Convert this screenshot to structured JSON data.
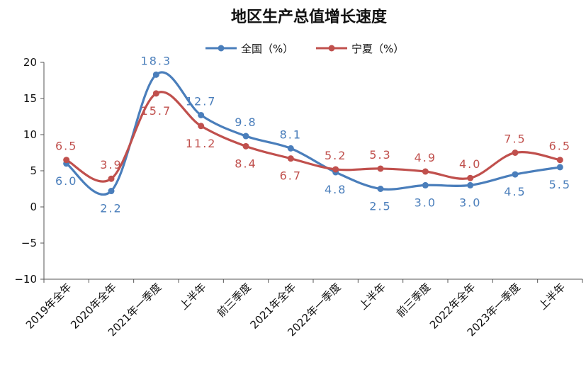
{
  "chart_data": {
    "type": "line",
    "title": "地区生产总值增长速度",
    "categories": [
      "2019年全年",
      "2020年全年",
      "2021年一季度",
      "上半年",
      "前三季度",
      "2021年全年",
      "2022年一季度",
      "上半年",
      "前三季度",
      "2022年全年",
      "2023年一季度",
      "上半年"
    ],
    "series": [
      {
        "name": "全国（%）",
        "color": "#4a7ebb",
        "values": [
          6.0,
          2.2,
          18.3,
          12.7,
          9.8,
          8.1,
          4.8,
          2.5,
          3.0,
          3.0,
          4.5,
          5.5
        ],
        "labels": [
          "6.0",
          "2.2",
          "18.3",
          "12.7",
          "9.8",
          "8.1",
          "4.8",
          "2.5",
          "3.0",
          "3.0",
          "4.5",
          "5.5"
        ]
      },
      {
        "name": "宁夏（%）",
        "color": "#c0504d",
        "values": [
          6.5,
          3.9,
          15.7,
          11.2,
          8.4,
          6.7,
          5.2,
          5.3,
          4.9,
          4.0,
          7.5,
          6.5
        ],
        "labels": [
          "6.5",
          "3.9",
          "15.7",
          "11.2",
          "8.4",
          "6.7",
          "5.2",
          "5.3",
          "4.9",
          "4.0",
          "7.5",
          "6.5"
        ]
      }
    ],
    "ylim": [
      -10,
      20
    ],
    "yticks": [
      "20",
      "15",
      "10",
      "5",
      "0",
      "−5",
      "−10"
    ],
    "legend_position": "top-center",
    "grid": false
  }
}
